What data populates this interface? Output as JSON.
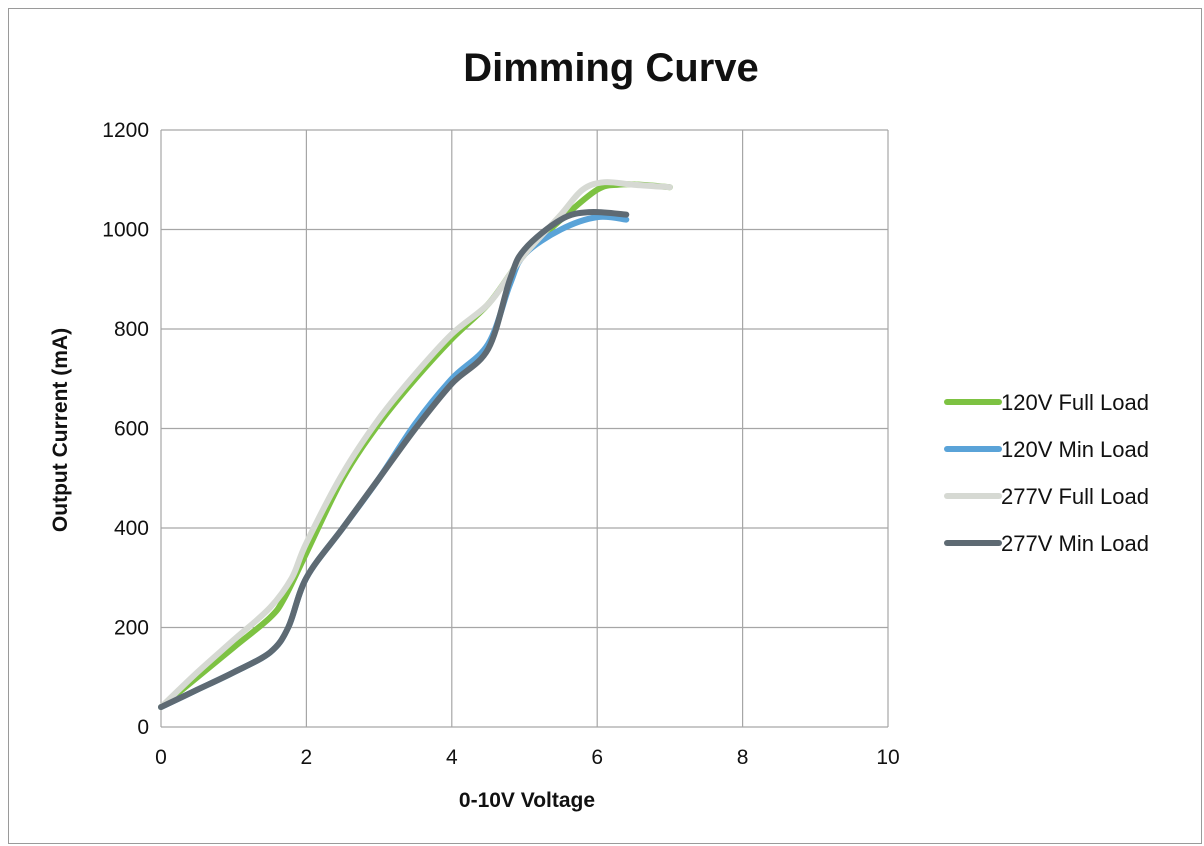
{
  "chart_data": {
    "type": "line",
    "title": "Dimming Curve",
    "xlabel": "0-10V Voltage",
    "ylabel": "Output Current (mA)",
    "xlim": [
      0,
      10
    ],
    "ylim": [
      0,
      1200
    ],
    "xticks": [
      0,
      2,
      4,
      6,
      8,
      10
    ],
    "yticks": [
      0,
      200,
      400,
      600,
      800,
      1000,
      1200
    ],
    "grid": true,
    "legend_position": "right",
    "series": [
      {
        "name": "120V Full Load",
        "color": "#7dc242",
        "points": [
          [
            0,
            40
          ],
          [
            0.5,
            100
          ],
          [
            1.0,
            160
          ],
          [
            1.5,
            220
          ],
          [
            1.7,
            260
          ],
          [
            2.0,
            350
          ],
          [
            2.5,
            500
          ],
          [
            3.0,
            610
          ],
          [
            3.5,
            700
          ],
          [
            4.0,
            780
          ],
          [
            4.5,
            850
          ],
          [
            4.8,
            910
          ],
          [
            5.0,
            950
          ],
          [
            5.5,
            1020
          ],
          [
            6.0,
            1080
          ],
          [
            6.3,
            1090
          ],
          [
            6.6,
            1090
          ],
          [
            7.0,
            1085
          ]
        ]
      },
      {
        "name": "120V Min Load",
        "color": "#5aa3d8",
        "points": [
          [
            0,
            40
          ],
          [
            0.5,
            75
          ],
          [
            1.0,
            110
          ],
          [
            1.5,
            150
          ],
          [
            1.75,
            200
          ],
          [
            2.0,
            300
          ],
          [
            2.5,
            400
          ],
          [
            3.0,
            500
          ],
          [
            3.5,
            610
          ],
          [
            4.0,
            700
          ],
          [
            4.5,
            770
          ],
          [
            4.8,
            890
          ],
          [
            5.0,
            950
          ],
          [
            5.5,
            1000
          ],
          [
            6.0,
            1025
          ],
          [
            6.4,
            1020
          ]
        ]
      },
      {
        "name": "277V Full Load",
        "color": "#d6d9d3",
        "points": [
          [
            0,
            40
          ],
          [
            0.5,
            110
          ],
          [
            1.0,
            175
          ],
          [
            1.5,
            240
          ],
          [
            1.8,
            300
          ],
          [
            2.0,
            370
          ],
          [
            2.5,
            510
          ],
          [
            3.0,
            620
          ],
          [
            3.5,
            710
          ],
          [
            4.0,
            790
          ],
          [
            4.5,
            850
          ],
          [
            4.8,
            910
          ],
          [
            5.0,
            950
          ],
          [
            5.5,
            1030
          ],
          [
            5.8,
            1080
          ],
          [
            6.1,
            1095
          ],
          [
            6.5,
            1090
          ],
          [
            7.0,
            1085
          ]
        ]
      },
      {
        "name": "277V Min Load",
        "color": "#5e6a73",
        "points": [
          [
            0,
            40
          ],
          [
            0.5,
            75
          ],
          [
            1.0,
            110
          ],
          [
            1.5,
            150
          ],
          [
            1.75,
            200
          ],
          [
            2.0,
            300
          ],
          [
            2.5,
            400
          ],
          [
            3.0,
            500
          ],
          [
            3.5,
            600
          ],
          [
            4.0,
            690
          ],
          [
            4.5,
            760
          ],
          [
            4.8,
            900
          ],
          [
            5.0,
            960
          ],
          [
            5.5,
            1020
          ],
          [
            5.9,
            1035
          ],
          [
            6.4,
            1030
          ]
        ]
      }
    ]
  }
}
